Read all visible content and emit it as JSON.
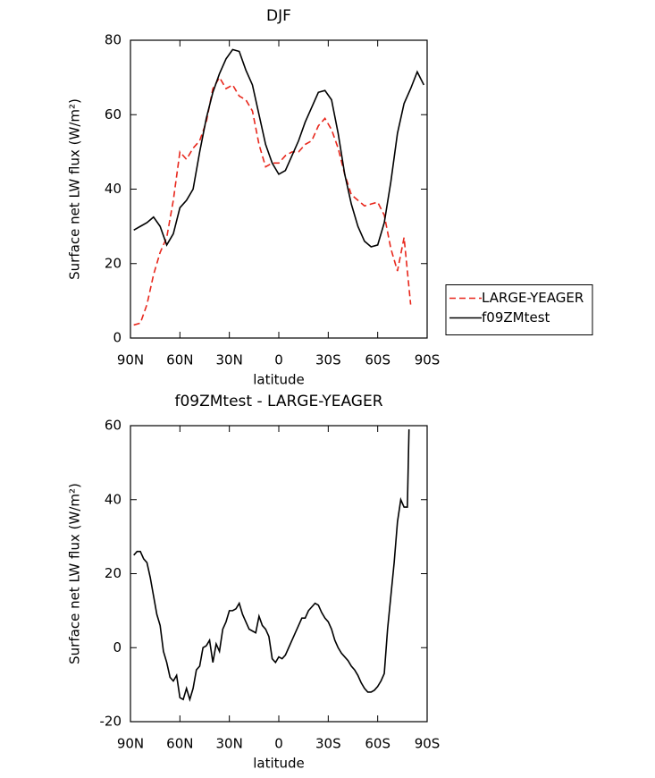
{
  "chart_data": [
    {
      "type": "line",
      "title": "DJF",
      "xlabel": "latitude",
      "ylabel": "Surface net LW flux (W/m²)",
      "x": [
        88,
        84,
        80,
        76,
        72,
        68,
        64,
        60,
        56,
        52,
        48,
        44,
        40,
        36,
        32,
        28,
        24,
        20,
        16,
        12,
        8,
        4,
        0,
        -4,
        -8,
        -12,
        -16,
        -20,
        -24,
        -28,
        -32,
        -36,
        -40,
        -44,
        -48,
        -52,
        -56,
        -60,
        -64,
        -68,
        -72,
        -76,
        -80,
        -84,
        -88
      ],
      "series": [
        {
          "name": "LARGE-YEAGER",
          "color": "#e8271c",
          "linestyle": "dashed",
          "values": [
            3.5,
            4,
            9,
            17,
            23,
            27,
            37,
            50,
            48,
            51,
            53,
            58,
            67,
            70,
            67,
            68,
            65,
            64,
            61,
            52,
            46,
            47,
            47,
            49,
            50,
            50,
            52,
            53,
            57,
            59,
            56,
            51,
            44,
            38.5,
            37,
            35.5,
            36,
            36.5,
            33,
            24,
            18,
            27,
            9,
            null,
            null
          ]
        },
        {
          "name": "f09ZMtest",
          "color": "#000000",
          "linestyle": "solid",
          "values": [
            29,
            30,
            31,
            32.5,
            30,
            25,
            28,
            35,
            37,
            40,
            50,
            59,
            66,
            71,
            75,
            77.5,
            77,
            72,
            68,
            60,
            52,
            47,
            44,
            45,
            49,
            53,
            58,
            62,
            66,
            66.5,
            64,
            55,
            44,
            36,
            30,
            26,
            24.5,
            25,
            31,
            42,
            55,
            63,
            67,
            71.5,
            68
          ]
        }
      ],
      "xlim": [
        90,
        -90
      ],
      "xticks": [
        {
          "value": 90,
          "label": "90N"
        },
        {
          "value": 60,
          "label": "60N"
        },
        {
          "value": 30,
          "label": "30N"
        },
        0,
        {
          "value": -30,
          "label": "30S"
        },
        {
          "value": -60,
          "label": "60S"
        },
        {
          "value": -90,
          "label": "90S"
        }
      ],
      "ylim": [
        0,
        80
      ],
      "yticks": [
        0,
        20,
        40,
        60,
        80
      ],
      "legend": "right"
    },
    {
      "type": "line",
      "title": "f09ZMtest - LARGE-YEAGER",
      "xlabel": "latitude",
      "ylabel": "Surface net LW flux (W/m²)",
      "x": [
        88,
        86,
        84,
        82,
        80,
        78,
        76,
        74,
        72,
        70,
        68,
        66,
        64,
        62,
        60,
        58,
        56,
        54,
        52,
        50,
        48,
        46,
        44,
        42,
        40,
        38,
        36,
        34,
        32,
        30,
        28,
        26,
        24,
        22,
        20,
        18,
        16,
        14,
        12,
        10,
        8,
        6,
        4,
        2,
        0,
        -2,
        -4,
        -6,
        -8,
        -10,
        -12,
        -14,
        -16,
        -18,
        -20,
        -22,
        -24,
        -26,
        -28,
        -30,
        -32,
        -34,
        -36,
        -38,
        -40,
        -42,
        -44,
        -46,
        -48,
        -50,
        -52,
        -54,
        -56,
        -58,
        -60,
        -62,
        -64,
        -66,
        -68,
        -70,
        -72,
        -74,
        -76,
        -78,
        -79
      ],
      "series": [
        {
          "name": "f09ZMtest - LARGE-YEAGER",
          "color": "#000000",
          "linestyle": "solid",
          "values": [
            25,
            26,
            26,
            24,
            23,
            19,
            14,
            9,
            6,
            -1,
            -4,
            -8,
            -9,
            -7.5,
            -13.5,
            -14,
            -11,
            -14,
            -11,
            -6,
            -5,
            0,
            0.5,
            2,
            -4,
            1,
            -1,
            5,
            7,
            10,
            10,
            10.5,
            12,
            9,
            7,
            5,
            4.5,
            4,
            8.5,
            6,
            5,
            3,
            -3,
            -4,
            -2.5,
            -3,
            -2,
            0,
            2,
            4,
            6,
            8,
            8,
            10,
            11,
            12,
            11.5,
            9.5,
            8,
            7,
            5,
            2,
            0,
            -1.5,
            -2.5,
            -3.5,
            -5,
            -6,
            -7.5,
            -9.5,
            -11,
            -12,
            -12,
            -11.5,
            -10.5,
            -9,
            -7,
            5,
            14,
            23,
            34,
            40,
            38,
            38,
            59
          ]
        }
      ],
      "xlim": [
        90,
        -90
      ],
      "xticks": [
        {
          "value": 90,
          "label": "90N"
        },
        {
          "value": 60,
          "label": "60N"
        },
        {
          "value": 30,
          "label": "30N"
        },
        0,
        {
          "value": -30,
          "label": "30S"
        },
        {
          "value": -60,
          "label": "60S"
        },
        {
          "value": -90,
          "label": "90S"
        }
      ],
      "ylim": [
        -20,
        60
      ],
      "yticks": [
        -20,
        0,
        20,
        40,
        60
      ]
    }
  ]
}
